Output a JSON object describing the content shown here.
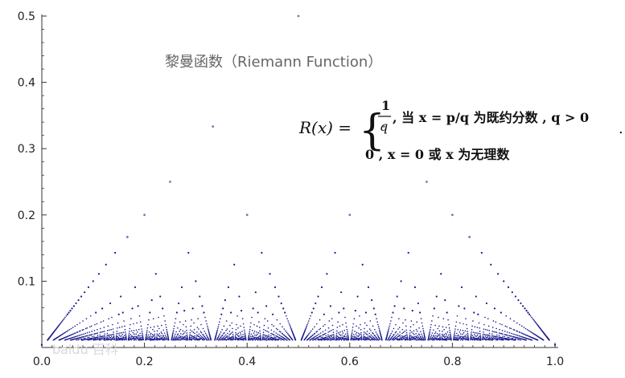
{
  "chart_data": {
    "type": "scatter",
    "title": "黎曼函数（Riemann Function）",
    "formula": {
      "lhs": "R(x) =",
      "case1": ", 当 x = p/q 为既约分数 , q > 0",
      "case2": "0 , x = 0 或 x 为无理数",
      "frac_num": "1",
      "frac_den": "q",
      "p": "p",
      "q": "q",
      "trailing": "."
    },
    "xlim": [
      0,
      1
    ],
    "ylim": [
      0,
      0.5
    ],
    "x_ticks": [
      "0.0",
      "0.2",
      "0.4",
      "0.6",
      "0.8",
      "1.0"
    ],
    "y_ticks": [
      "0.1",
      "0.2",
      "0.3",
      "0.4",
      "0.5"
    ],
    "function": "R(x)=1/q for x=p/q in lowest terms; 0 otherwise",
    "max_denominator": 90,
    "colors": {
      "points": "#1a1a8c",
      "axis": "#333333"
    },
    "watermark": "baidu 百科"
  }
}
